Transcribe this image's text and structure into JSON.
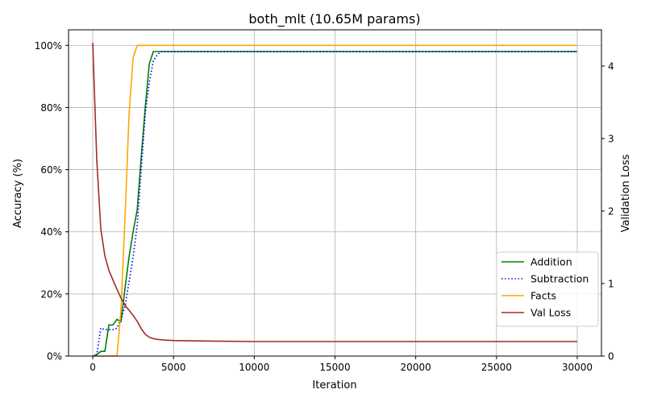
{
  "chart_data": {
    "type": "line",
    "title": "both_mlt (10.65M params)",
    "xlabel": "Iteration",
    "ylabel": "Accuracy (%)",
    "y2label": "Validation Loss",
    "xlim": [
      -1500,
      31500
    ],
    "ylim": [
      0,
      105
    ],
    "y2lim": [
      0,
      4.5
    ],
    "x_ticks": [
      0,
      5000,
      10000,
      15000,
      20000,
      25000,
      30000
    ],
    "x_tick_labels": [
      "0",
      "5000",
      "10000",
      "15000",
      "20000",
      "25000",
      "30000"
    ],
    "y_ticks": [
      0,
      20,
      40,
      60,
      80,
      100
    ],
    "y_tick_labels": [
      "0%",
      "20%",
      "40%",
      "60%",
      "80%",
      "100%"
    ],
    "y2_ticks": [
      0,
      1,
      2,
      3,
      4
    ],
    "y2_tick_labels": [
      "0",
      "1",
      "2",
      "3",
      "4"
    ],
    "grid": true,
    "legend_position": "lower-right",
    "series": [
      {
        "name": "Addition",
        "axis": "left",
        "color": "#008000",
        "style": "solid",
        "x": [
          0,
          250,
          500,
          750,
          1000,
          1250,
          1500,
          1750,
          2000,
          2250,
          2500,
          2750,
          3000,
          3250,
          3500,
          3750,
          4000,
          5000,
          10000,
          15000,
          20000,
          25000,
          30000
        ],
        "y": [
          0,
          0.5,
          1.5,
          1.5,
          10,
          10,
          11.8,
          11,
          22,
          32,
          40,
          47,
          64,
          80,
          94,
          98,
          98,
          98,
          98,
          98,
          98,
          98,
          98
        ]
      },
      {
        "name": "Subtraction",
        "axis": "left",
        "color": "#0000ff",
        "style": "dotted",
        "x": [
          0,
          250,
          500,
          750,
          1000,
          1250,
          1500,
          1750,
          2000,
          2250,
          2500,
          2750,
          3000,
          3250,
          3500,
          3750,
          4000,
          4250,
          5000,
          10000,
          15000,
          20000,
          25000,
          30000
        ],
        "y": [
          0,
          0.5,
          9,
          8.5,
          8.5,
          8.5,
          9,
          12,
          16,
          24,
          32,
          42,
          60,
          78,
          88,
          95,
          97,
          98,
          98,
          98,
          98,
          98,
          98,
          98
        ]
      },
      {
        "name": "Facts",
        "axis": "left",
        "color": "#ffa500",
        "style": "solid",
        "x": [
          0,
          500,
          1000,
          1500,
          1750,
          2000,
          2250,
          2500,
          2750,
          3000,
          5000,
          10000,
          15000,
          20000,
          25000,
          30000
        ],
        "y": [
          0,
          0,
          0,
          0,
          15,
          45,
          78,
          96,
          100,
          100,
          100,
          100,
          100,
          100,
          100,
          100
        ]
      },
      {
        "name": "Val Loss",
        "axis": "right",
        "color": "#a52a2a",
        "style": "solid",
        "x": [
          0,
          250,
          500,
          750,
          1000,
          1250,
          1500,
          1750,
          2000,
          2250,
          2500,
          2750,
          3000,
          3250,
          3500,
          3750,
          4000,
          4500,
          5000,
          6000,
          8000,
          10000,
          15000,
          20000,
          25000,
          30000
        ],
        "y": [
          4.32,
          2.7,
          1.75,
          1.38,
          1.18,
          1.05,
          0.92,
          0.8,
          0.7,
          0.63,
          0.56,
          0.48,
          0.38,
          0.3,
          0.26,
          0.24,
          0.23,
          0.22,
          0.215,
          0.21,
          0.205,
          0.2,
          0.2,
          0.2,
          0.2,
          0.2
        ]
      }
    ]
  }
}
